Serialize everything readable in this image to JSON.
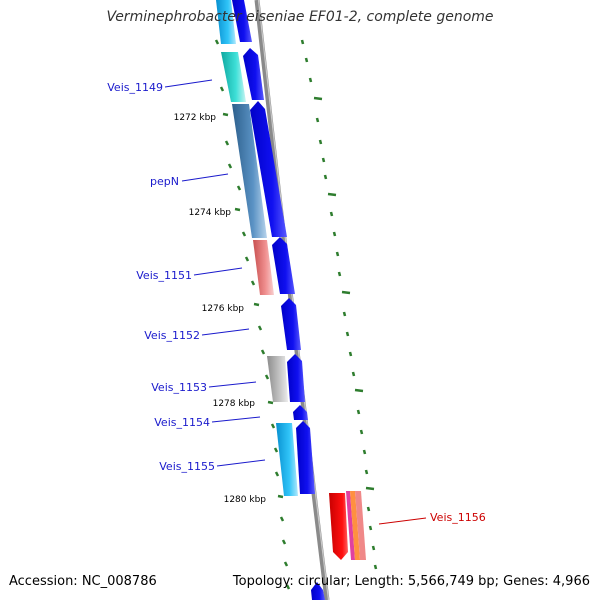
{
  "title": "Verminephrobacter eiseniae EF01-2, complete genome",
  "accession": "Accession: NC_008786",
  "topology": "Topology: circular; Length: 5,566,749 bp; Genes: 4,966",
  "scale_labels": [
    "1272 kbp",
    "1274 kbp",
    "1276 kbp",
    "1278 kbp",
    "1280 kbp"
  ],
  "gene_labels": [
    {
      "name": "Veis_1149",
      "color": "#1a1acc"
    },
    {
      "name": "pepN",
      "color": "#1a1acc"
    },
    {
      "name": "Veis_1151",
      "color": "#1a1acc"
    },
    {
      "name": "Veis_1152",
      "color": "#1a1acc"
    },
    {
      "name": "Veis_1153",
      "color": "#1a1acc"
    },
    {
      "name": "Veis_1154",
      "color": "#1a1acc"
    },
    {
      "name": "Veis_1155",
      "color": "#1a1acc"
    },
    {
      "name": "Veis_1156",
      "color": "#cc0000"
    }
  ],
  "colors": {
    "backbone": "#8a8a8a",
    "cds_arrow": "#0a0ae6",
    "tick": "#2e7d2e",
    "cog_teal": "#1ec8c0",
    "cog_steel": "#4a82b4",
    "cog_salmon": "#e88080",
    "cog_gray": "#b0b0b0",
    "cog_sky": "#20b8f0",
    "cog_red": "#ee0000"
  }
}
